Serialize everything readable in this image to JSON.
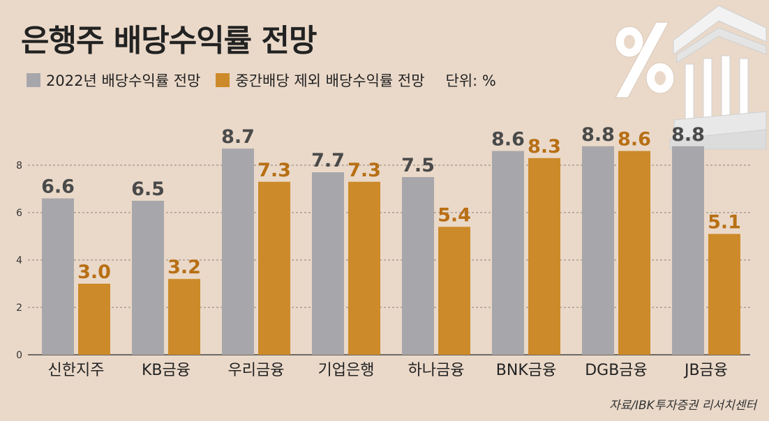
{
  "title": "은행주 배당수익률 전망",
  "unit": "단위: %",
  "source": "자료/IBK투자증권 리서치센터",
  "colors": {
    "series_a": "#a7a7ab",
    "series_b": "#cd8a2a",
    "label_a": "#4a4a4a",
    "label_b": "#b86f14"
  },
  "chart_data": {
    "type": "bar",
    "categories": [
      "신한지주",
      "KB금융",
      "우리금융",
      "기업은행",
      "하나금융",
      "BNK금융",
      "DGB금융",
      "JB금융"
    ],
    "series": [
      {
        "name": "2022년 배당수익률 전망",
        "values": [
          6.6,
          6.5,
          8.7,
          7.7,
          7.5,
          8.6,
          8.8,
          8.8
        ],
        "labels": [
          "6.6",
          "6.5",
          "8.7",
          "7.7",
          "7.5",
          "8.6",
          "8.8",
          "8.8"
        ]
      },
      {
        "name": "중간배당 제외 배당수익률 전망",
        "values": [
          3.0,
          3.2,
          7.3,
          7.3,
          5.4,
          8.3,
          8.6,
          5.1
        ],
        "labels": [
          "3.0",
          "3.2",
          "7.3",
          "7.3",
          "5.4",
          "8.3",
          "8.6",
          "5.1"
        ]
      }
    ],
    "yticks": [
      "0",
      "2",
      "4",
      "6",
      "8"
    ],
    "ylim": [
      0,
      10
    ],
    "grid": true,
    "legend": "top-left"
  }
}
